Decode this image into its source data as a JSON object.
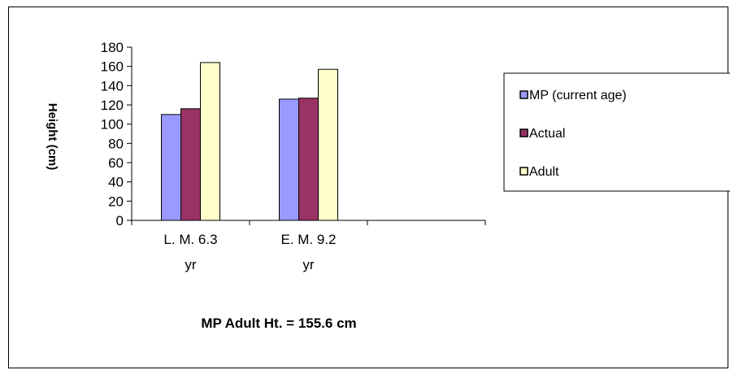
{
  "colors": {
    "series": [
      "#9999ff",
      "#993366",
      "#ffffcc"
    ],
    "axis": "#000000"
  },
  "chart_data": {
    "type": "bar",
    "categories": [
      [
        "L. M. 6.3",
        "yr"
      ],
      [
        "E. M.  9.2",
        "yr"
      ]
    ],
    "series": [
      {
        "name": "MP (current age)",
        "values": [
          110,
          126
        ]
      },
      {
        "name": "Actual",
        "values": [
          116,
          127
        ]
      },
      {
        "name": "Adult",
        "values": [
          164,
          157
        ]
      }
    ],
    "yticks": [
      0,
      20,
      40,
      60,
      80,
      100,
      120,
      140,
      160,
      180
    ],
    "ylim": [
      0,
      180
    ],
    "ylabel": "Height (cm)",
    "legend_position": "right",
    "grid": false,
    "annotation": "MP Adult Ht. = 155.6 cm"
  }
}
